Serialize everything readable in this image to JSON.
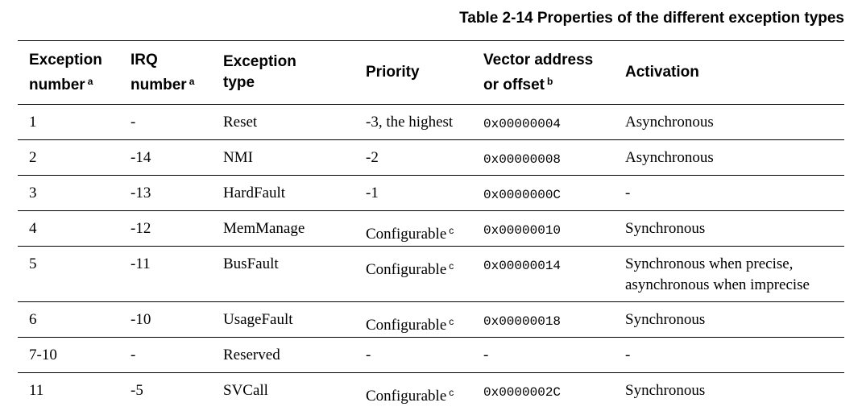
{
  "caption": "Table 2-14 Properties of the different exception types",
  "headers": {
    "exception_number": {
      "line1": "Exception",
      "line2": "number",
      "note": "a"
    },
    "irq_number": {
      "line1": "IRQ",
      "line2": "number",
      "note": "a"
    },
    "exception_type": {
      "line1": "Exception",
      "line2": "type"
    },
    "priority": {
      "line1": "Priority"
    },
    "vector": {
      "line1": "Vector address",
      "line2": "or offset",
      "note": "b"
    },
    "activation": {
      "line1": "Activation"
    }
  },
  "rows": [
    {
      "num": "1",
      "irq": "-",
      "type": "Reset",
      "priority": "-3, the highest",
      "priority_note": "",
      "vector": "0x00000004",
      "activation": "Asynchronous",
      "activation2": ""
    },
    {
      "num": "2",
      "irq": "-14",
      "type": "NMI",
      "priority": "-2",
      "priority_note": "",
      "vector": "0x00000008",
      "activation": "Asynchronous",
      "activation2": ""
    },
    {
      "num": "3",
      "irq": "-13",
      "type": "HardFault",
      "priority": "-1",
      "priority_note": "",
      "vector": "0x0000000C",
      "activation": "-",
      "activation2": ""
    },
    {
      "num": "4",
      "irq": "-12",
      "type": "MemManage",
      "priority": "Configurable",
      "priority_note": "c",
      "vector": "0x00000010",
      "activation": "Synchronous",
      "activation2": ""
    },
    {
      "num": "5",
      "irq": "-11",
      "type": "BusFault",
      "priority": "Configurable",
      "priority_note": "c",
      "vector": "0x00000014",
      "activation": "Synchronous when precise,",
      "activation2": "asynchronous when imprecise"
    },
    {
      "num": "6",
      "irq": "-10",
      "type": "UsageFault",
      "priority": "Configurable",
      "priority_note": "c",
      "vector": "0x00000018",
      "activation": "Synchronous",
      "activation2": ""
    },
    {
      "num": "7-10",
      "irq": "-",
      "type": "Reserved",
      "priority": "-",
      "priority_note": "",
      "vector": "-",
      "activation": "-",
      "activation2": ""
    },
    {
      "num": "11",
      "irq": "-5",
      "type": "SVCall",
      "priority": "Configurable",
      "priority_note": "c",
      "vector": "0x0000002C",
      "activation": "Synchronous",
      "activation2": ""
    }
  ]
}
